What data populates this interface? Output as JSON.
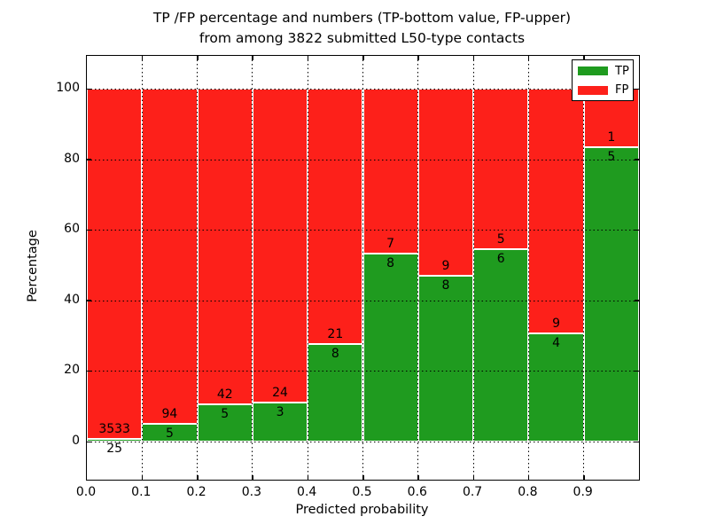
{
  "title": {
    "line1": "TP /FP percentage and numbers (TP-bottom value, FP-upper)",
    "line2": "from among 3822 submitted L50-type contacts"
  },
  "axes": {
    "ylabel": "Percentage",
    "xlabel": "Predicted probability",
    "y_ticks": [
      0,
      20,
      40,
      60,
      80,
      100
    ],
    "x_ticks": [
      "0.0",
      "0.1",
      "0.2",
      "0.3",
      "0.4",
      "0.5",
      "0.6",
      "0.7",
      "0.8",
      "0.9"
    ],
    "xlim": [
      0.0,
      1.0
    ],
    "ylim": [
      -10.8,
      109.3
    ],
    "grid": "dotted-black-both-axes"
  },
  "legend": {
    "position": "upper-right",
    "items": [
      {
        "label": "TP",
        "color": "#1f9b1f"
      },
      {
        "label": "FP",
        "color": "#fd201a"
      }
    ]
  },
  "colors": {
    "tp": "#1f9b1f",
    "fp": "#fd201a",
    "background": "#ffffff",
    "frame": "#000000",
    "text": "#000000"
  },
  "chart_data": {
    "type": "bar",
    "stacked": true,
    "normalized_total_pct": 100,
    "title": "TP /FP percentage and numbers (TP-bottom value, FP-upper) from among 3822 submitted L50-type contacts",
    "xlabel": "Predicted probability",
    "ylabel": "Percentage",
    "total_contacts": 3822,
    "categories": [
      "0.0-0.1",
      "0.1-0.2",
      "0.2-0.3",
      "0.3-0.4",
      "0.4-0.5",
      "0.5-0.6",
      "0.6-0.7",
      "0.7-0.8",
      "0.8-0.9",
      "0.9-1.0"
    ],
    "bins": [
      {
        "x_start": 0.0,
        "x_end": 0.1,
        "tp": 25,
        "fp": 3533,
        "tp_pct": 0.7
      },
      {
        "x_start": 0.1,
        "x_end": 0.2,
        "tp": 5,
        "fp": 94,
        "tp_pct": 5.05
      },
      {
        "x_start": 0.2,
        "x_end": 0.3,
        "tp": 5,
        "fp": 42,
        "tp_pct": 10.64
      },
      {
        "x_start": 0.3,
        "x_end": 0.4,
        "tp": 3,
        "fp": 24,
        "tp_pct": 11.11
      },
      {
        "x_start": 0.4,
        "x_end": 0.5,
        "tp": 8,
        "fp": 21,
        "tp_pct": 27.59
      },
      {
        "x_start": 0.5,
        "x_end": 0.6,
        "tp": 8,
        "fp": 7,
        "tp_pct": 53.33
      },
      {
        "x_start": 0.6,
        "x_end": 0.7,
        "tp": 8,
        "fp": 9,
        "tp_pct": 47.06
      },
      {
        "x_start": 0.7,
        "x_end": 0.8,
        "tp": 6,
        "fp": 5,
        "tp_pct": 54.55
      },
      {
        "x_start": 0.8,
        "x_end": 0.9,
        "tp": 4,
        "fp": 9,
        "tp_pct": 30.77
      },
      {
        "x_start": 0.9,
        "x_end": 1.0,
        "tp": 5,
        "fp": 1,
        "tp_pct": 83.33
      }
    ],
    "series": [
      {
        "name": "TP",
        "values_counts": [
          25,
          5,
          5,
          3,
          8,
          8,
          8,
          6,
          4,
          5
        ]
      },
      {
        "name": "FP",
        "values_counts": [
          3533,
          94,
          42,
          24,
          21,
          7,
          9,
          5,
          9,
          1
        ]
      }
    ]
  }
}
